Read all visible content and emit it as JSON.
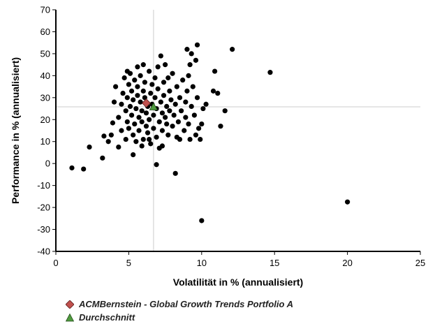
{
  "chart_data": {
    "type": "scatter",
    "xlabel": "Volatilität in % (annualisiert)",
    "ylabel": "Performance in % (annualisiert)",
    "xlim": [
      0,
      25
    ],
    "ylim": [
      -40,
      70
    ],
    "x_ticks": [
      0,
      5,
      10,
      15,
      20,
      25
    ],
    "y_ticks": [
      -40,
      -30,
      -20,
      -10,
      0,
      10,
      20,
      30,
      40,
      50,
      60,
      70
    ],
    "grid": false,
    "reference_lines": {
      "x": 6.7,
      "y": 25.8,
      "color": "#cccccc"
    },
    "legend_position": "bottom-left",
    "series": [
      {
        "name": "",
        "marker": "circle",
        "color": "#000000",
        "points": [
          [
            1.1,
            -2
          ],
          [
            1.9,
            -2.5
          ],
          [
            2.3,
            7.5
          ],
          [
            3.2,
            2.5
          ],
          [
            3.3,
            12.5
          ],
          [
            3.6,
            10
          ],
          [
            3.8,
            13
          ],
          [
            3.9,
            18.5
          ],
          [
            4.0,
            28
          ],
          [
            4.1,
            35
          ],
          [
            4.3,
            21
          ],
          [
            4.3,
            7.5
          ],
          [
            4.5,
            15
          ],
          [
            4.5,
            27
          ],
          [
            4.6,
            32
          ],
          [
            4.7,
            39
          ],
          [
            4.8,
            11
          ],
          [
            4.8,
            24
          ],
          [
            4.9,
            19
          ],
          [
            4.9,
            30
          ],
          [
            5.0,
            36
          ],
          [
            5.0,
            16
          ],
          [
            5.1,
            26
          ],
          [
            5.1,
            41
          ],
          [
            5.2,
            22
          ],
          [
            5.2,
            33
          ],
          [
            5.3,
            13
          ],
          [
            5.3,
            29
          ],
          [
            5.4,
            38
          ],
          [
            5.4,
            18
          ],
          [
            5.5,
            25
          ],
          [
            5.5,
            10
          ],
          [
            5.6,
            31
          ],
          [
            5.6,
            35
          ],
          [
            5.7,
            21
          ],
          [
            5.7,
            15
          ],
          [
            5.8,
            40
          ],
          [
            5.8,
            28
          ],
          [
            5.9,
            24
          ],
          [
            5.9,
            19
          ],
          [
            6.0,
            33
          ],
          [
            6.0,
            11
          ],
          [
            6.1,
            30
          ],
          [
            6.1,
            37
          ],
          [
            6.2,
            17
          ],
          [
            6.2,
            23
          ],
          [
            6.3,
            26
          ],
          [
            6.3,
            14
          ],
          [
            6.4,
            42
          ],
          [
            6.4,
            20
          ],
          [
            6.5,
            32
          ],
          [
            6.5,
            9
          ],
          [
            6.6,
            27
          ],
          [
            6.6,
            36
          ],
          [
            6.7,
            22
          ],
          [
            6.7,
            16
          ],
          [
            6.8,
            39
          ],
          [
            6.8,
            30
          ],
          [
            6.9,
            12
          ],
          [
            6.9,
            25
          ],
          [
            7.0,
            34
          ],
          [
            7.0,
            44
          ],
          [
            7.1,
            19
          ],
          [
            7.1,
            7
          ],
          [
            7.2,
            49
          ],
          [
            7.2,
            28
          ],
          [
            7.3,
            23
          ],
          [
            7.3,
            15
          ],
          [
            7.4,
            37
          ],
          [
            7.4,
            31
          ],
          [
            7.5,
            45
          ],
          [
            7.5,
            21
          ],
          [
            7.6,
            18
          ],
          [
            7.6,
            26
          ],
          [
            7.7,
            39
          ],
          [
            7.7,
            13
          ],
          [
            7.8,
            33
          ],
          [
            7.8,
            24
          ],
          [
            7.9,
            29
          ],
          [
            8.0,
            17
          ],
          [
            8.0,
            41
          ],
          [
            8.1,
            22
          ],
          [
            8.2,
            27
          ],
          [
            8.3,
            35
          ],
          [
            8.3,
            12
          ],
          [
            8.4,
            19
          ],
          [
            8.5,
            30
          ],
          [
            8.6,
            24
          ],
          [
            8.7,
            38
          ],
          [
            8.8,
            15
          ],
          [
            8.9,
            28
          ],
          [
            8.9,
            21
          ],
          [
            9.0,
            33
          ],
          [
            9.0,
            52
          ],
          [
            9.1,
            40
          ],
          [
            9.1,
            18
          ],
          [
            9.2,
            45
          ],
          [
            9.2,
            11
          ],
          [
            9.3,
            50
          ],
          [
            9.3,
            26
          ],
          [
            9.4,
            35
          ],
          [
            9.5,
            22
          ],
          [
            9.6,
            47
          ],
          [
            9.7,
            54
          ],
          [
            9.7,
            30
          ],
          [
            9.8,
            16
          ],
          [
            9.9,
            11
          ],
          [
            10.0,
            18
          ],
          [
            10.1,
            25
          ],
          [
            10.3,
            27
          ],
          [
            10.8,
            33
          ],
          [
            10.9,
            42
          ],
          [
            11.1,
            32
          ],
          [
            11.3,
            17
          ],
          [
            11.6,
            24
          ],
          [
            12.1,
            52
          ],
          [
            14.7,
            41.5
          ],
          [
            6.9,
            -0.5
          ],
          [
            8.2,
            -4.5
          ],
          [
            10.0,
            -26
          ],
          [
            20.0,
            -17.5
          ],
          [
            5.3,
            4
          ],
          [
            5.9,
            8
          ],
          [
            6.4,
            11
          ],
          [
            7.3,
            8
          ],
          [
            8.5,
            11
          ],
          [
            9.6,
            13
          ],
          [
            4.9,
            42
          ],
          [
            5.6,
            44
          ],
          [
            6.0,
            45
          ]
        ]
      },
      {
        "name": "ACMBernstein - Global Growth Trends Portfolio A",
        "marker": "diamond",
        "color": "#c0504d",
        "points": [
          [
            6.2,
            27.5
          ]
        ]
      },
      {
        "name": "Durchschnitt",
        "marker": "triangle",
        "color": "#4f9a3f",
        "points": [
          [
            6.7,
            25.8
          ]
        ]
      }
    ]
  },
  "legend": {
    "items": [
      {
        "label": "ACMBernstein - Global Growth Trends Portfolio A",
        "marker": "diamond",
        "color": "#c0504d"
      },
      {
        "label": "Durchschnitt",
        "marker": "triangle",
        "color": "#4f9a3f"
      }
    ]
  }
}
